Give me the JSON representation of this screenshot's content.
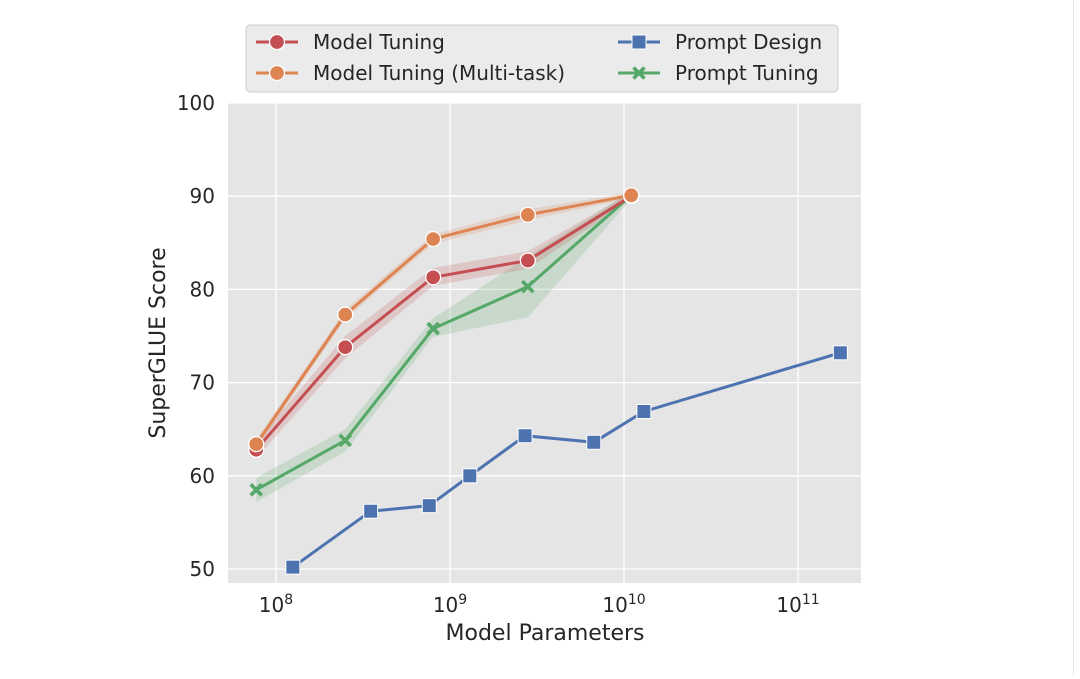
{
  "chart_data": {
    "type": "line",
    "title": "",
    "xlabel": "Model Parameters",
    "ylabel": "SuperGLUE Score",
    "xscale": "log",
    "xlim": [
      53000000.0,
      230000000000.0
    ],
    "ylim": [
      48.5,
      100
    ],
    "grid": true,
    "legend_position": "top",
    "xticks": [
      {
        "value": 100000000.0,
        "base": "10",
        "exp": "8"
      },
      {
        "value": 1000000000.0,
        "base": "10",
        "exp": "9"
      },
      {
        "value": 10000000000.0,
        "base": "10",
        "exp": "10"
      },
      {
        "value": 100000000000.0,
        "base": "10",
        "exp": "11"
      }
    ],
    "yticks": [
      {
        "value": 50,
        "label": "50"
      },
      {
        "value": 60,
        "label": "60"
      },
      {
        "value": 70,
        "label": "70"
      },
      {
        "value": 80,
        "label": "80"
      },
      {
        "value": 90,
        "label": "90"
      },
      {
        "value": 100,
        "label": "100"
      }
    ],
    "series": [
      {
        "name": "Model Tuning",
        "color": "#c44e52",
        "marker": "circle",
        "x": [
          77000000.0,
          250000000.0,
          800000000.0,
          2800000000.0,
          11000000000.0
        ],
        "y": [
          62.8,
          73.8,
          81.3,
          83.1,
          90.0
        ],
        "lower": [
          61.9,
          72.6,
          80.4,
          82.2,
          89.6
        ],
        "upper": [
          63.7,
          75.0,
          82.3,
          84.1,
          90.4
        ]
      },
      {
        "name": "Model Tuning (Multi-task)",
        "color": "#dd8452",
        "marker": "circle",
        "x": [
          77000000.0,
          250000000.0,
          800000000.0,
          2800000000.0,
          11000000000.0
        ],
        "y": [
          63.4,
          77.3,
          85.4,
          88.0,
          90.1
        ],
        "lower": [
          62.9,
          76.8,
          84.9,
          87.4,
          89.8
        ],
        "upper": [
          63.9,
          77.8,
          85.9,
          88.6,
          90.4
        ]
      },
      {
        "name": "Prompt Design",
        "color": "#4c72b0",
        "marker": "square",
        "x": [
          125000000.0,
          350000000.0,
          760000000.0,
          1300000000.0,
          2700000000.0,
          6700000000.0,
          13000000000.0,
          175000000000.0
        ],
        "y": [
          50.2,
          56.2,
          56.8,
          60.0,
          64.3,
          63.6,
          66.9,
          73.2
        ]
      },
      {
        "name": "Prompt Tuning",
        "color": "#55a868",
        "marker": "x",
        "x": [
          77000000.0,
          250000000.0,
          800000000.0,
          2800000000.0,
          11000000000.0
        ],
        "y": [
          58.5,
          63.8,
          75.8,
          80.3,
          90.1
        ],
        "lower": [
          57.2,
          62.6,
          74.9,
          77.0,
          89.7
        ],
        "upper": [
          59.8,
          65.0,
          76.9,
          83.5,
          90.5
        ]
      }
    ]
  }
}
